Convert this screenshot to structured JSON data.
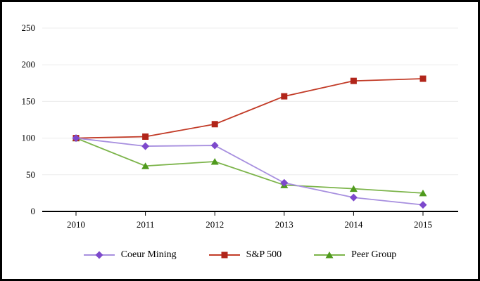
{
  "chart_data": {
    "type": "line",
    "title": "",
    "xlabel": "",
    "ylabel": "",
    "x_categories": [
      "2010",
      "2011",
      "2012",
      "2013",
      "2014",
      "2015"
    ],
    "y_ticks": [
      0,
      50,
      100,
      150,
      200,
      250
    ],
    "ylim": [
      0,
      250
    ],
    "grid": "horizontal",
    "legend_position": "bottom",
    "series": [
      {
        "name": "Coeur Mining",
        "marker": "diamond",
        "line_color": "#a78fdf",
        "marker_color": "#7d49cc",
        "values": [
          100,
          89,
          90,
          39,
          19,
          9
        ]
      },
      {
        "name": "S&P 500",
        "marker": "square",
        "line_color": "#c23b27",
        "marker_color": "#b1251a",
        "values": [
          100,
          102,
          119,
          157,
          178,
          181
        ]
      },
      {
        "name": "Peer Group",
        "marker": "triangle",
        "line_color": "#7cb44a",
        "marker_color": "#4f9a1d",
        "values": [
          100,
          62,
          68,
          36,
          31,
          25
        ]
      }
    ]
  },
  "colors": {
    "background": "#ffffff",
    "frame_border": "#000000",
    "gridline": "#ececec",
    "axis_line": "#000000",
    "tick_label": "#000000"
  }
}
